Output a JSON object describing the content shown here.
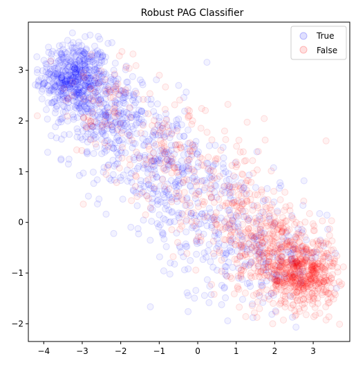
{
  "chart_data": {
    "type": "scatter",
    "title": "Robust PAG Classifier",
    "xlabel": "",
    "ylabel": "",
    "xlim": [
      -4.4,
      3.95
    ],
    "ylim": [
      -2.35,
      3.95
    ],
    "xticks": [
      -4,
      -3,
      -2,
      -1,
      0,
      1,
      2,
      3
    ],
    "yticks": [
      -2,
      -1,
      0,
      1,
      2,
      3
    ],
    "xtick_labels": [
      "−4",
      "−3",
      "−2",
      "−1",
      "0",
      "1",
      "2",
      "3"
    ],
    "ytick_labels": [
      "−2",
      "−1",
      "0",
      "1",
      "2",
      "3"
    ],
    "grid": false,
    "legend_position": "top-right",
    "marker": "hollow circle, alpha≈0.1",
    "series": [
      {
        "name": "True",
        "color": "#0000ff",
        "clusters": [
          {
            "center": [
              -3.2,
              2.85
            ],
            "spread": [
              0.45,
              0.35
            ],
            "count": 500
          },
          {
            "center": [
              -2.3,
              2.1
            ],
            "spread": [
              0.6,
              0.45
            ],
            "count": 280
          },
          {
            "center": [
              -1.0,
              1.1
            ],
            "spread": [
              0.75,
              0.6
            ],
            "count": 260
          },
          {
            "center": [
              0.4,
              0.0
            ],
            "spread": [
              0.8,
              0.7
            ],
            "count": 200
          },
          {
            "center": [
              2.0,
              -0.6
            ],
            "spread": [
              0.7,
              0.55
            ],
            "count": 150
          }
        ]
      },
      {
        "name": "False",
        "color": "#ff0000",
        "clusters": [
          {
            "center": [
              2.75,
              -1.0
            ],
            "spread": [
              0.45,
              0.35
            ],
            "count": 500
          },
          {
            "center": [
              1.9,
              -0.55
            ],
            "spread": [
              0.55,
              0.5
            ],
            "count": 300
          },
          {
            "center": [
              0.8,
              0.3
            ],
            "spread": [
              0.7,
              0.6
            ],
            "count": 180
          },
          {
            "center": [
              -0.7,
              1.3
            ],
            "spread": [
              0.75,
              0.55
            ],
            "count": 130
          },
          {
            "center": [
              -2.4,
              2.3
            ],
            "spread": [
              0.7,
              0.5
            ],
            "count": 90
          }
        ]
      }
    ]
  }
}
